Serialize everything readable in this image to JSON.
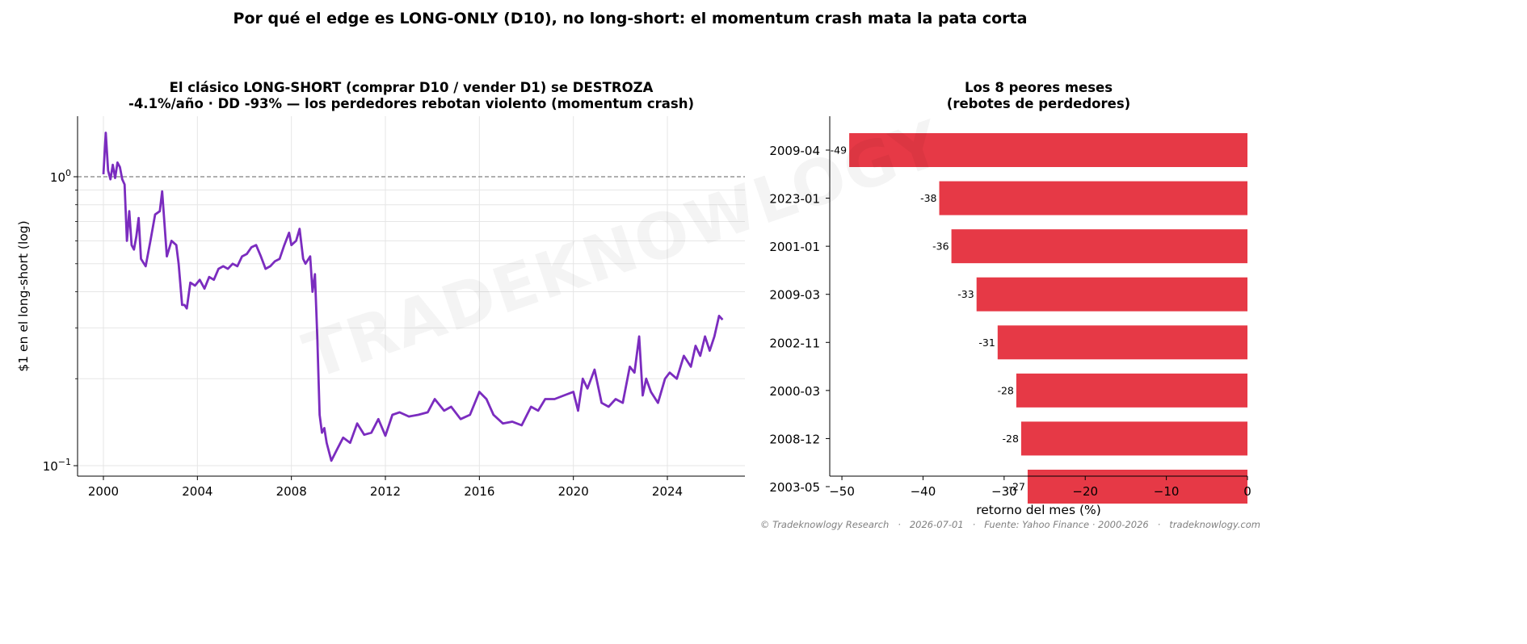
{
  "figure": {
    "title": "Por qué el edge es LONG-ONLY (D10), no long-short: el momentum crash mata la pata corta",
    "watermark": "TRADEKNOWLOGY",
    "footer": "© Tradeknowlogy Research   ·   2026-07-01   ·   Fuente: Yahoo Finance · 2000-2026   ·   tradeknowlogy.com"
  },
  "chart_data": [
    {
      "type": "line",
      "title_line1": "El clásico LONG-SHORT (comprar D10 / vender D1) se DESTROZA",
      "title_line2": "-4.1%/año · DD -93% — los perdedores rebotan violento (momentum crash)",
      "ylabel": "$1 en el long-short (log)",
      "xlabel": "",
      "yscale": "log",
      "xlim": [
        1998.9,
        2027.3
      ],
      "ylim": [
        0.092,
        1.62
      ],
      "xticks": [
        "2000",
        "2004",
        "2008",
        "2012",
        "2016",
        "2020",
        "2024"
      ],
      "yticks": [
        {
          "value": 1.0,
          "base": "10",
          "exp": "0"
        },
        {
          "value": 0.1,
          "base": "10",
          "exp": "−1"
        }
      ],
      "grid": true,
      "reference_line": {
        "y": 1.0,
        "style": "dashed",
        "color": "#808080"
      },
      "color": "#7B2CBF",
      "series": [
        {
          "x": [
            2000.0,
            2000.1,
            2000.2,
            2000.3,
            2000.4,
            2000.5,
            2000.6,
            2000.7,
            2000.8,
            2000.9,
            2001.0,
            2001.1,
            2001.2,
            2001.3,
            2001.4,
            2001.5,
            2001.6,
            2001.8,
            2002.0,
            2002.2,
            2002.4,
            2002.5,
            2002.7,
            2002.9,
            2003.1,
            2003.2,
            2003.35,
            2003.45,
            2003.55,
            2003.7,
            2003.9,
            2004.1,
            2004.3,
            2004.5,
            2004.7,
            2004.9,
            2005.1,
            2005.3,
            2005.5,
            2005.7,
            2005.9,
            2006.1,
            2006.3,
            2006.5,
            2006.7,
            2006.9,
            2007.1,
            2007.3,
            2007.5,
            2007.7,
            2007.9,
            2008.0,
            2008.2,
            2008.35,
            2008.5,
            2008.6,
            2008.8,
            2008.9,
            2009.0,
            2009.1,
            2009.2,
            2009.3,
            2009.4,
            2009.5,
            2009.7,
            2009.9,
            2010.2,
            2010.5,
            2010.8,
            2011.1,
            2011.4,
            2011.7,
            2012.0,
            2012.3,
            2012.6,
            2013.0,
            2013.4,
            2013.8,
            2014.1,
            2014.5,
            2014.8,
            2015.2,
            2015.6,
            2016.0,
            2016.3,
            2016.6,
            2017.0,
            2017.4,
            2017.8,
            2018.2,
            2018.5,
            2018.8,
            2019.2,
            2019.6,
            2020.0,
            2020.2,
            2020.4,
            2020.6,
            2020.9,
            2021.2,
            2021.5,
            2021.8,
            2022.1,
            2022.4,
            2022.6,
            2022.8,
            2022.95,
            2023.1,
            2023.3,
            2023.6,
            2023.9,
            2024.1,
            2024.4,
            2024.7,
            2025.0,
            2025.2,
            2025.4,
            2025.6,
            2025.8,
            2026.0,
            2026.2,
            2026.35
          ],
          "y": [
            1.02,
            1.42,
            1.05,
            0.98,
            1.1,
            0.99,
            1.12,
            1.08,
            0.98,
            0.94,
            0.6,
            0.76,
            0.58,
            0.56,
            0.62,
            0.72,
            0.52,
            0.49,
            0.6,
            0.74,
            0.76,
            0.89,
            0.53,
            0.6,
            0.58,
            0.5,
            0.36,
            0.36,
            0.35,
            0.43,
            0.42,
            0.44,
            0.41,
            0.45,
            0.44,
            0.48,
            0.49,
            0.48,
            0.5,
            0.49,
            0.53,
            0.54,
            0.57,
            0.58,
            0.53,
            0.48,
            0.49,
            0.51,
            0.52,
            0.58,
            0.64,
            0.58,
            0.6,
            0.66,
            0.52,
            0.5,
            0.53,
            0.4,
            0.46,
            0.28,
            0.15,
            0.13,
            0.135,
            0.12,
            0.104,
            0.112,
            0.125,
            0.12,
            0.14,
            0.128,
            0.13,
            0.145,
            0.127,
            0.15,
            0.153,
            0.148,
            0.15,
            0.153,
            0.17,
            0.155,
            0.16,
            0.145,
            0.15,
            0.18,
            0.17,
            0.15,
            0.14,
            0.142,
            0.138,
            0.16,
            0.155,
            0.17,
            0.17,
            0.175,
            0.18,
            0.155,
            0.2,
            0.185,
            0.215,
            0.165,
            0.16,
            0.17,
            0.165,
            0.22,
            0.21,
            0.28,
            0.175,
            0.2,
            0.18,
            0.165,
            0.2,
            0.21,
            0.2,
            0.24,
            0.22,
            0.26,
            0.24,
            0.28,
            0.25,
            0.28,
            0.33,
            0.32
          ]
        }
      ]
    },
    {
      "type": "bar",
      "orientation": "horizontal",
      "title_line1": "Los 8 peores meses",
      "title_line2": "(rebotes de perdedores)",
      "xlabel": "retorno del mes (%)",
      "xlim": [
        -51.5,
        0
      ],
      "xticks": [
        "−50",
        "−40",
        "−30",
        "−20",
        "−10",
        "0"
      ],
      "xtick_values": [
        -50,
        -40,
        -30,
        -20,
        -10,
        0
      ],
      "color": "#E63946",
      "categories": [
        "2009-04",
        "2023-01",
        "2001-01",
        "2009-03",
        "2002-11",
        "2000-03",
        "2008-12",
        "2003-05"
      ],
      "values": [
        -49,
        -38,
        -36,
        -33,
        -31,
        -28,
        -28,
        -27
      ],
      "bar_values": [
        -49.1,
        -38.0,
        -36.5,
        -33.4,
        -30.8,
        -28.5,
        -27.9,
        -27.1
      ],
      "data_labels": [
        "-49",
        "-38",
        "-36",
        "-33",
        "-31",
        "-28",
        "-28",
        "-27"
      ]
    }
  ]
}
